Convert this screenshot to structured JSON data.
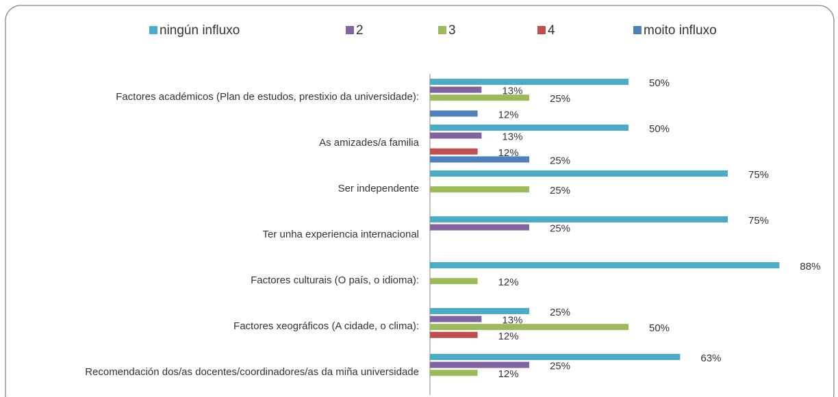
{
  "chart_data": {
    "type": "barh",
    "categories": [
      "Factores académicos (Plan de estudos, prestixio da universidade):",
      "As amizades/a familia",
      "Ser independente",
      "Ter unha experiencia internacional",
      "Factores culturais (O país, o idioma):",
      "Factores xeográficos (A cidade, o clima):",
      "Recomendación dos/as docentes/coordinadores/as da miña universidade"
    ],
    "series": [
      {
        "name": "ningún influxo",
        "color": "#4bacc6",
        "values": [
          50,
          50,
          75,
          75,
          88,
          25,
          63
        ],
        "value_labels": [
          "50%",
          "50%",
          "75%",
          "75%",
          "88%",
          "25%",
          "63%"
        ]
      },
      {
        "name": "2",
        "color": "#8064a2",
        "values": [
          13,
          13,
          null,
          25,
          null,
          13,
          25
        ],
        "value_labels": [
          "13%",
          "13%",
          null,
          "25%",
          null,
          "13%",
          "25%"
        ]
      },
      {
        "name": "3",
        "color": "#9bbb59",
        "values": [
          25,
          null,
          25,
          null,
          12,
          50,
          12
        ],
        "value_labels": [
          "25%",
          null,
          "25%",
          null,
          "12%",
          "50%",
          "12%"
        ]
      },
      {
        "name": "4",
        "color": "#c0504d",
        "values": [
          null,
          12,
          null,
          null,
          null,
          12,
          null
        ],
        "value_labels": [
          null,
          "12%",
          null,
          null,
          null,
          "12%",
          null
        ]
      },
      {
        "name": "moito influxo",
        "color": "#4f81bd",
        "values": [
          12,
          25,
          null,
          null,
          null,
          null,
          null
        ],
        "value_labels": [
          "12%",
          "25%",
          null,
          null,
          null,
          null,
          null
        ]
      }
    ],
    "legend": "top"
  }
}
